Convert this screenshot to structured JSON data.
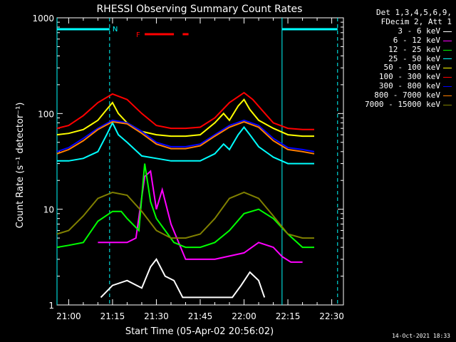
{
  "colors": {
    "background": "#000000",
    "axis": "#ffffff",
    "cyan": "#00ffff",
    "red_flare": "#ff0000"
  },
  "chart_data": {
    "type": "line",
    "title": "RHESSI Observing Summary Count Rates",
    "xlabel": "Start Time (05-Apr-02 20:56:02)",
    "ylabel": "Count Rate (s⁻¹ detector⁻¹)",
    "y_scale": "log",
    "ylim": [
      1,
      1000
    ],
    "xlim": [
      "20:56",
      "22:34"
    ],
    "x_ticks": [
      "21:00",
      "21:15",
      "21:30",
      "21:45",
      "22:00",
      "22:15",
      "22:30"
    ],
    "y_ticks": [
      "1",
      "10",
      "100",
      "1000"
    ],
    "grid": false,
    "legend_position": "right",
    "legend_header": [
      "Det 1,3,4,5,6,9,",
      "FDecim 2, Att 1"
    ],
    "annotations": {
      "night_label": "N",
      "flare_label": "F"
    },
    "night_bars": [
      {
        "start": "20:56",
        "end": "21:14"
      },
      {
        "start": "22:13",
        "end": "22:32"
      }
    ],
    "flare_bars": [
      {
        "start": "21:26",
        "end": "21:36"
      },
      {
        "start": "21:39",
        "end": "21:41"
      }
    ],
    "series": [
      {
        "name": "3 - 6 keV",
        "color": "#ffffff",
        "x": [
          "21:11",
          "21:15",
          "21:20",
          "21:25",
          "21:28",
          "21:30",
          "21:33",
          "21:36",
          "21:39",
          "21:56",
          "21:59",
          "22:02",
          "22:05",
          "22:07"
        ],
        "y": [
          1.2,
          1.6,
          1.8,
          1.5,
          2.5,
          3.0,
          2.0,
          1.8,
          1.2,
          1.2,
          1.6,
          2.2,
          1.8,
          1.2
        ]
      },
      {
        "name": "6 - 12 keV",
        "color": "#ff00ff",
        "x": [
          "20:56",
          "21:05",
          "21:10",
          "21:15",
          "21:20",
          "21:23",
          "21:26",
          "21:28",
          "21:30",
          "21:32",
          "21:35",
          "21:40",
          "21:50",
          "22:00",
          "22:05",
          "22:10",
          "22:13",
          "22:16",
          "22:20",
          "22:24"
        ],
        "y": [
          null,
          null,
          4.5,
          4.5,
          4.5,
          5.0,
          22,
          25,
          10,
          16,
          7.0,
          3.0,
          3.0,
          3.5,
          4.5,
          4.0,
          3.2,
          2.8,
          2.8,
          null
        ]
      },
      {
        "name": "12 - 25 keV",
        "color": "#00ff00",
        "x": [
          "20:56",
          "21:00",
          "21:05",
          "21:10",
          "21:15",
          "21:18",
          "21:20",
          "21:24",
          "21:26",
          "21:28",
          "21:30",
          "21:33",
          "21:36",
          "21:40",
          "21:45",
          "21:50",
          "21:55",
          "22:00",
          "22:05",
          "22:10",
          "22:15",
          "22:20",
          "22:24"
        ],
        "y": [
          4.0,
          4.2,
          4.5,
          7.5,
          9.5,
          9.5,
          8.0,
          6.0,
          30,
          12,
          8.0,
          6.0,
          4.5,
          4.0,
          4.0,
          4.5,
          6.0,
          9.0,
          10,
          8.0,
          5.5,
          4.0,
          4.0
        ]
      },
      {
        "name": "25 - 50 keV",
        "color": "#00ffff",
        "x": [
          "20:56",
          "21:00",
          "21:05",
          "21:10",
          "21:13",
          "21:15",
          "21:17",
          "21:20",
          "21:25",
          "21:30",
          "21:35",
          "21:40",
          "21:45",
          "21:50",
          "21:53",
          "21:55",
          "21:58",
          "22:00",
          "22:02",
          "22:05",
          "22:10",
          "22:15",
          "22:20",
          "22:24"
        ],
        "y": [
          32,
          32,
          34,
          40,
          60,
          80,
          60,
          50,
          36,
          34,
          32,
          32,
          32,
          38,
          48,
          42,
          60,
          72,
          60,
          45,
          35,
          30,
          30,
          30
        ]
      },
      {
        "name": "50 - 100 keV",
        "color": "#ffff00",
        "x": [
          "20:56",
          "21:00",
          "21:05",
          "21:10",
          "21:13",
          "21:15",
          "21:17",
          "21:20",
          "21:25",
          "21:30",
          "21:35",
          "21:40",
          "21:45",
          "21:50",
          "21:53",
          "21:55",
          "21:58",
          "22:00",
          "22:02",
          "22:05",
          "22:10",
          "22:15",
          "22:20",
          "22:24"
        ],
        "y": [
          60,
          62,
          68,
          85,
          110,
          130,
          100,
          80,
          65,
          60,
          58,
          58,
          60,
          80,
          100,
          85,
          120,
          140,
          110,
          85,
          70,
          60,
          58,
          58
        ]
      },
      {
        "name": "100 - 300 keV",
        "color": "#ff0000",
        "x": [
          "20:56",
          "21:00",
          "21:05",
          "21:10",
          "21:15",
          "21:20",
          "21:25",
          "21:30",
          "21:35",
          "21:40",
          "21:45",
          "21:50",
          "21:55",
          "22:00",
          "22:03",
          "22:06",
          "22:10",
          "22:15",
          "22:20",
          "22:24"
        ],
        "y": [
          70,
          75,
          95,
          130,
          160,
          140,
          100,
          75,
          70,
          70,
          72,
          90,
          130,
          165,
          140,
          110,
          80,
          70,
          68,
          68
        ]
      },
      {
        "name": "300 - 800 keV",
        "color": "#0000ff",
        "x": [
          "20:56",
          "21:00",
          "21:05",
          "21:10",
          "21:15",
          "21:20",
          "21:25",
          "21:30",
          "21:35",
          "21:40",
          "21:45",
          "21:50",
          "21:55",
          "22:00",
          "22:05",
          "22:10",
          "22:15",
          "22:20",
          "22:24"
        ],
        "y": [
          40,
          44,
          55,
          70,
          85,
          80,
          65,
          50,
          45,
          45,
          48,
          60,
          75,
          85,
          75,
          55,
          44,
          42,
          40
        ]
      },
      {
        "name": "800 - 7000 keV",
        "color": "#ff8000",
        "x": [
          "20:56",
          "21:00",
          "21:05",
          "21:10",
          "21:15",
          "21:20",
          "21:25",
          "21:30",
          "21:35",
          "21:40",
          "21:45",
          "21:50",
          "21:55",
          "22:00",
          "22:05",
          "22:10",
          "22:15",
          "22:20",
          "22:24"
        ],
        "y": [
          38,
          42,
          52,
          68,
          82,
          78,
          62,
          48,
          43,
          43,
          46,
          58,
          72,
          82,
          72,
          52,
          42,
          40,
          38
        ]
      },
      {
        "name": "7000 - 15000 keV",
        "color": "#808000",
        "x": [
          "20:56",
          "21:00",
          "21:05",
          "21:10",
          "21:15",
          "21:20",
          "21:25",
          "21:30",
          "21:35",
          "21:40",
          "21:45",
          "21:50",
          "21:55",
          "22:00",
          "22:05",
          "22:10",
          "22:15",
          "22:20",
          "22:24"
        ],
        "y": [
          5.5,
          6.0,
          8.5,
          13,
          15,
          14,
          9.5,
          6.0,
          5.0,
          5.0,
          5.5,
          8.0,
          13,
          15,
          13,
          8.5,
          5.5,
          5.0,
          5.0
        ]
      }
    ]
  },
  "timestamp": "14-Oct-2021 18:33"
}
